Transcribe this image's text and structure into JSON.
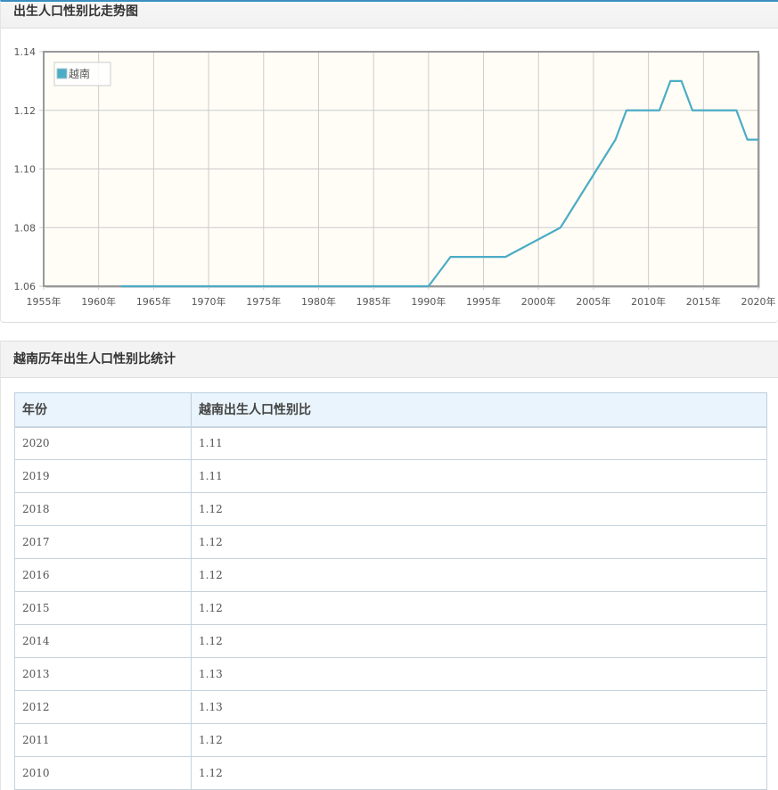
{
  "chart_panel": {
    "title": "出生人口性别比走势图"
  },
  "table_panel": {
    "title": "越南历年出生人口性别比统计",
    "columns": [
      "年份",
      "越南出生人口性别比"
    ],
    "rows": [
      {
        "year": "2020",
        "value": "1.11"
      },
      {
        "year": "2019",
        "value": "1.11"
      },
      {
        "year": "2018",
        "value": "1.12"
      },
      {
        "year": "2017",
        "value": "1.12"
      },
      {
        "year": "2016",
        "value": "1.12"
      },
      {
        "year": "2015",
        "value": "1.12"
      },
      {
        "year": "2014",
        "value": "1.12"
      },
      {
        "year": "2013",
        "value": "1.13"
      },
      {
        "year": "2012",
        "value": "1.13"
      },
      {
        "year": "2011",
        "value": "1.12"
      },
      {
        "year": "2010",
        "value": "1.12"
      }
    ]
  },
  "colors": {
    "series": "#4bacc6",
    "plot_bg": "#fffdf6",
    "grid": "#cccccc",
    "axis": "#999999"
  },
  "chart_data": {
    "type": "line",
    "title": "出生人口性别比走势图",
    "xlabel": "",
    "ylabel": "",
    "xlim": [
      1955,
      2020
    ],
    "ylim": [
      1.06,
      1.14
    ],
    "x_ticks": [
      "1955年",
      "1960年",
      "1965年",
      "1970年",
      "1975年",
      "1980年",
      "1985年",
      "1990年",
      "1995年",
      "2000年",
      "2005年",
      "2010年",
      "2015年",
      "2020年"
    ],
    "y_ticks": [
      "1.06",
      "1.08",
      "1.10",
      "1.12",
      "1.14"
    ],
    "grid": true,
    "legend_position": "top-left",
    "series": [
      {
        "name": "越南",
        "x": [
          1962,
          1990,
          1992,
          1997,
          2002,
          2007,
          2008,
          2011,
          2012,
          2013,
          2014,
          2018,
          2019,
          2020
        ],
        "values": [
          1.06,
          1.06,
          1.07,
          1.07,
          1.08,
          1.11,
          1.12,
          1.12,
          1.13,
          1.13,
          1.12,
          1.12,
          1.11,
          1.11
        ]
      }
    ]
  }
}
